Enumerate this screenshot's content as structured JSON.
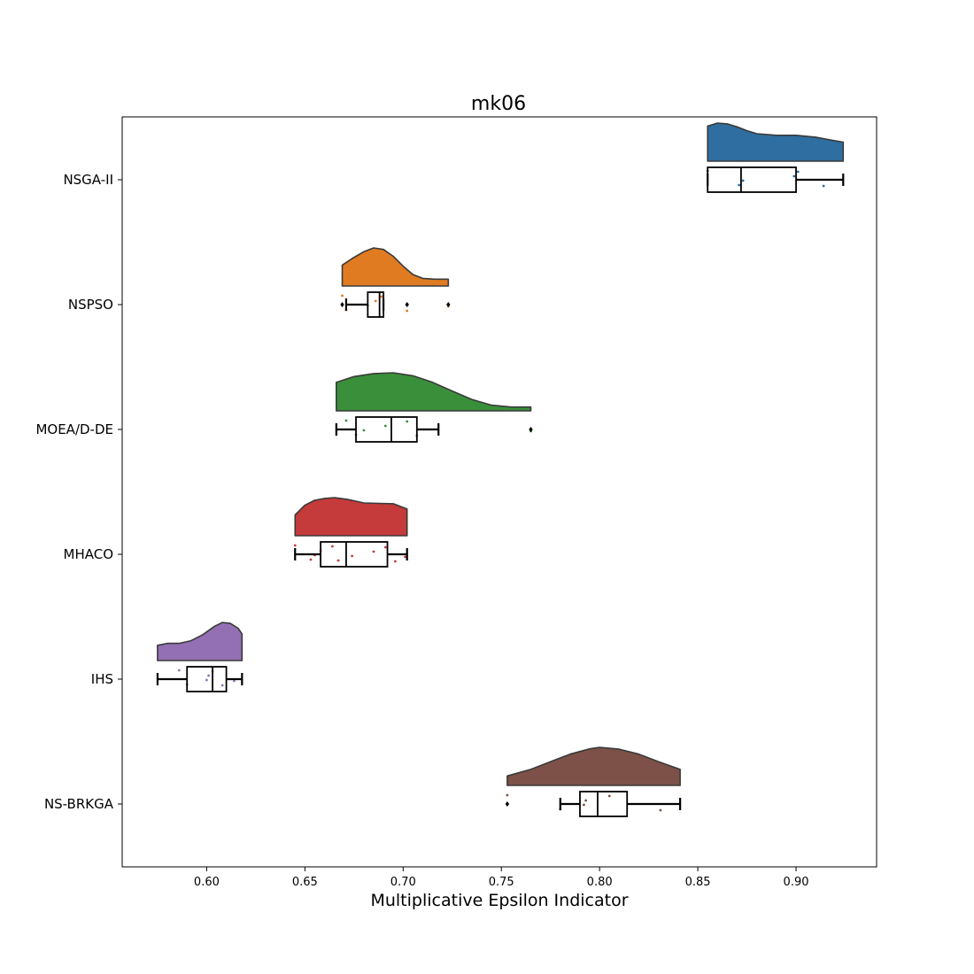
{
  "chart_data": {
    "type": "raincloud",
    "title": "mk06",
    "xlabel": "Multiplicative Epsilon Indicator",
    "ylabel": "",
    "xlim": [
      0.557,
      0.941
    ],
    "xticks": [
      0.6,
      0.65,
      0.7,
      0.75,
      0.8,
      0.85,
      0.9
    ],
    "xtick_labels": [
      "0.60",
      "0.65",
      "0.70",
      "0.75",
      "0.80",
      "0.85",
      "0.90"
    ],
    "grid": false,
    "series": [
      {
        "name": "NSGA-II",
        "color": "#2f6ea0",
        "box": {
          "whislo": 0.855,
          "q1": 0.855,
          "median": 0.872,
          "q3": 0.9,
          "whishi": 0.924
        },
        "outliers": [],
        "kde": [
          [
            0.855,
            0.92
          ],
          [
            0.86,
            1.0
          ],
          [
            0.865,
            0.98
          ],
          [
            0.87,
            0.9
          ],
          [
            0.875,
            0.8
          ],
          [
            0.88,
            0.72
          ],
          [
            0.89,
            0.68
          ],
          [
            0.9,
            0.68
          ],
          [
            0.91,
            0.63
          ],
          [
            0.918,
            0.55
          ],
          [
            0.924,
            0.5
          ]
        ],
        "points": [
          0.855,
          0.871,
          0.873,
          0.899,
          0.901,
          0.914
        ]
      },
      {
        "name": "NSPSO",
        "color": "#e07b22",
        "box": {
          "whislo": 0.671,
          "q1": 0.682,
          "median": 0.688,
          "q3": 0.69,
          "whishi": 0.69
        },
        "outliers": [
          0.669,
          0.702,
          0.723
        ],
        "kde": [
          [
            0.669,
            0.55
          ],
          [
            0.674,
            0.72
          ],
          [
            0.68,
            0.9
          ],
          [
            0.685,
            1.0
          ],
          [
            0.69,
            0.96
          ],
          [
            0.695,
            0.78
          ],
          [
            0.7,
            0.52
          ],
          [
            0.705,
            0.3
          ],
          [
            0.71,
            0.2
          ],
          [
            0.716,
            0.18
          ],
          [
            0.723,
            0.18
          ]
        ],
        "points": [
          0.669,
          0.671,
          0.682,
          0.686,
          0.689,
          0.702,
          0.723
        ]
      },
      {
        "name": "MOEA/D-DE",
        "color": "#3a8f3a",
        "box": {
          "whislo": 0.666,
          "q1": 0.676,
          "median": 0.694,
          "q3": 0.707,
          "whishi": 0.718
        },
        "outliers": [
          0.765
        ],
        "kde": [
          [
            0.666,
            0.75
          ],
          [
            0.675,
            0.9
          ],
          [
            0.685,
            0.98
          ],
          [
            0.695,
            1.0
          ],
          [
            0.705,
            0.92
          ],
          [
            0.715,
            0.75
          ],
          [
            0.725,
            0.52
          ],
          [
            0.735,
            0.3
          ],
          [
            0.745,
            0.15
          ],
          [
            0.755,
            0.1
          ],
          [
            0.765,
            0.1
          ]
        ],
        "points": [
          0.671,
          0.676,
          0.68,
          0.691,
          0.702,
          0.707,
          0.765
        ]
      },
      {
        "name": "MHACO",
        "color": "#c53a3a",
        "box": {
          "whislo": 0.645,
          "q1": 0.658,
          "median": 0.671,
          "q3": 0.692,
          "whishi": 0.702
        },
        "outliers": [],
        "kde": [
          [
            0.645,
            0.55
          ],
          [
            0.65,
            0.8
          ],
          [
            0.655,
            0.93
          ],
          [
            0.66,
            0.98
          ],
          [
            0.665,
            1.0
          ],
          [
            0.672,
            0.95
          ],
          [
            0.68,
            0.86
          ],
          [
            0.688,
            0.85
          ],
          [
            0.695,
            0.84
          ],
          [
            0.702,
            0.7
          ]
        ],
        "points": [
          0.645,
          0.653,
          0.655,
          0.658,
          0.664,
          0.667,
          0.674,
          0.685,
          0.691,
          0.696,
          0.701
        ]
      },
      {
        "name": "IHS",
        "color": "#9370b3",
        "box": {
          "whislo": 0.575,
          "q1": 0.59,
          "median": 0.603,
          "q3": 0.61,
          "whishi": 0.618
        },
        "outliers": [],
        "kde": [
          [
            0.575,
            0.4
          ],
          [
            0.58,
            0.45
          ],
          [
            0.586,
            0.45
          ],
          [
            0.592,
            0.52
          ],
          [
            0.598,
            0.68
          ],
          [
            0.604,
            0.9
          ],
          [
            0.608,
            1.0
          ],
          [
            0.612,
            0.98
          ],
          [
            0.616,
            0.85
          ],
          [
            0.618,
            0.7
          ]
        ],
        "points": [
          0.586,
          0.59,
          0.6,
          0.601,
          0.603,
          0.608,
          0.614
        ]
      },
      {
        "name": "NS-BRKGA",
        "color": "#7d5147",
        "box": {
          "whislo": 0.78,
          "q1": 0.79,
          "median": 0.799,
          "q3": 0.814,
          "whishi": 0.841
        },
        "outliers": [
          0.753
        ],
        "kde": [
          [
            0.753,
            0.25
          ],
          [
            0.765,
            0.42
          ],
          [
            0.775,
            0.62
          ],
          [
            0.785,
            0.82
          ],
          [
            0.795,
            0.96
          ],
          [
            0.8,
            1.0
          ],
          [
            0.81,
            0.95
          ],
          [
            0.82,
            0.82
          ],
          [
            0.83,
            0.62
          ],
          [
            0.841,
            0.42
          ]
        ],
        "points": [
          0.753,
          0.78,
          0.792,
          0.793,
          0.805,
          0.831
        ]
      }
    ]
  }
}
